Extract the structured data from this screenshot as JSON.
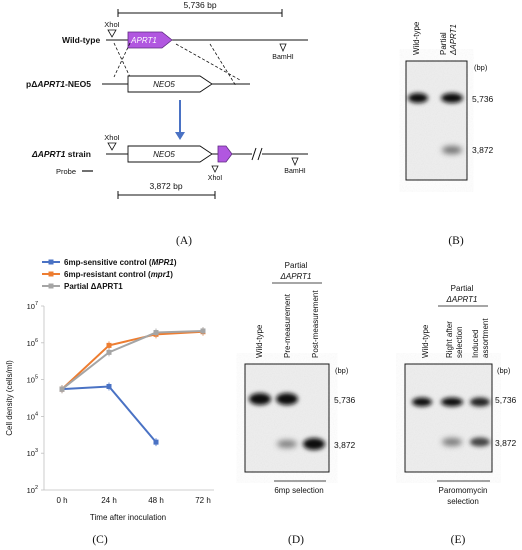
{
  "panel_a": {
    "top_bp": "5,736 bp",
    "xhoi": "XhoI",
    "wildtype_label": "Wild-type",
    "aprt1": "APRT1",
    "bamhi": "BamHI",
    "construct_label_pre": "pΔ",
    "construct_label_gene": "APRT1",
    "construct_label_post": "-NEO5",
    "neo5": "NEO5",
    "strain_label_gene": "ΔAPRT1",
    "strain_label_post": " strain",
    "probe": "Probe",
    "bottom_bp": "3,872 bp",
    "caption": "(A)"
  },
  "panel_b": {
    "lane1": "Wild-type",
    "lane2a": "Partial",
    "lane2b": "ΔAPRT1",
    "bp": "(bp)",
    "size1": "5,736",
    "size2": "3,872",
    "caption": "(B)"
  },
  "panel_c": {
    "caption": "(C)",
    "legend": [
      {
        "pre": "6mp-sensitive control (",
        "gene": "MPR1",
        "post": ")",
        "color": "#4a72c4"
      },
      {
        "pre": "6mp-resistant control (",
        "gene": "mpr1",
        "post": ")",
        "color": "#ed7d31"
      },
      {
        "pre": "Partial ΔAPRT1",
        "gene": "",
        "post": "",
        "color": "#a5a5a5"
      }
    ],
    "ylabel": "Cell density (cells/ml)",
    "xlabel": "Time after inoculation",
    "xticks": [
      "0 h",
      "24 h",
      "48 h",
      "72 h"
    ],
    "yticks": [
      "10^2",
      "10^3",
      "10^4",
      "10^5",
      "10^6",
      "10^7"
    ]
  },
  "chart_data": {
    "type": "line",
    "categories": [
      "0 h",
      "24 h",
      "48 h",
      "72 h"
    ],
    "series": [
      {
        "name": "6mp-sensitive control (MPR1)",
        "values": [
          55000,
          65000,
          2000,
          null
        ]
      },
      {
        "name": "6mp-resistant control (mpr1)",
        "values": [
          55000,
          850000,
          1700000,
          2000000
        ]
      },
      {
        "name": "Partial ΔAPRT1",
        "values": [
          55000,
          550000,
          1900000,
          2100000
        ]
      }
    ],
    "xlabel": "Time after inoculation",
    "ylabel": "Cell density (cells/ml)",
    "yscale": "log",
    "ylim": [
      100,
      10000000
    ]
  },
  "panel_d": {
    "partial": "Partial",
    "gene": "ΔAPRT1",
    "lane1": "Wild-type",
    "lane2": "Pre-measurement",
    "lane3": "Post-measurement",
    "bp": "(bp)",
    "size1": "5,736",
    "size2": "3,872",
    "selection": "6mp selection",
    "caption": "(D)"
  },
  "panel_e": {
    "partial": "Partial",
    "gene": "ΔAPRT1",
    "lane1": "Wild-type",
    "lane2a": "Right after",
    "lane2b": "selection",
    "lane3a": "Induced",
    "lane3b": "assortment",
    "bp": "(bp)",
    "size1": "5,736",
    "size2": "3,872",
    "selection_a": "Paromomycin",
    "selection_b": "selection",
    "caption": "(E)"
  }
}
